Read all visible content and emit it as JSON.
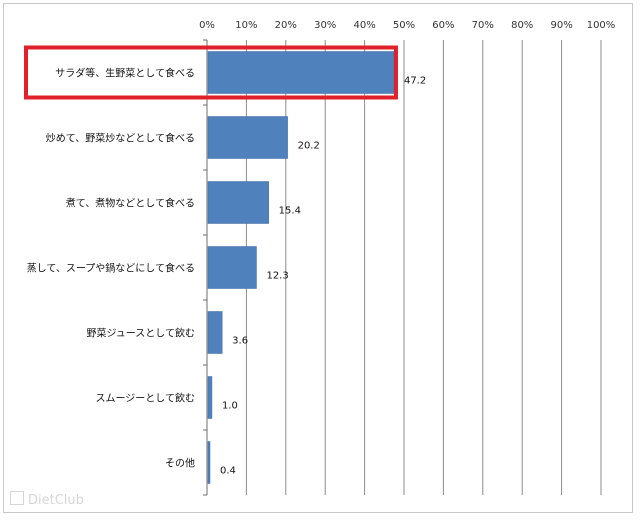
{
  "chart_data": {
    "type": "bar",
    "orientation": "horizontal",
    "categories": [
      "サラダ等、生野菜として食べる",
      "炒めて、野菜炒などとして食べる",
      "煮て、煮物などとして食べる",
      "蒸して、スープや鍋などにして食べる",
      "野菜ジュースとして飲む",
      "スムージーとして飲む",
      "その他"
    ],
    "values": [
      47.2,
      20.2,
      15.4,
      12.3,
      3.6,
      1.0,
      0.4
    ],
    "value_labels": [
      "47.2",
      "20.2",
      "15.4",
      "12.3",
      "3.6",
      "1.0",
      "0.4"
    ],
    "x_ticks": [
      "0%",
      "10%",
      "20%",
      "30%",
      "40%",
      "50%",
      "60%",
      "70%",
      "80%",
      "90%",
      "100%"
    ],
    "xlim": [
      0,
      100
    ],
    "xaxis_position": "top",
    "grid": true,
    "highlighted_category": "サラダ等、生野菜として食べる",
    "colors": {
      "bar": "#4f81bd",
      "highlight": "#e0202a",
      "grid": "#8c8c8c"
    }
  },
  "watermark": {
    "text": "DietClub",
    "icon": "watermark-logo-icon"
  }
}
